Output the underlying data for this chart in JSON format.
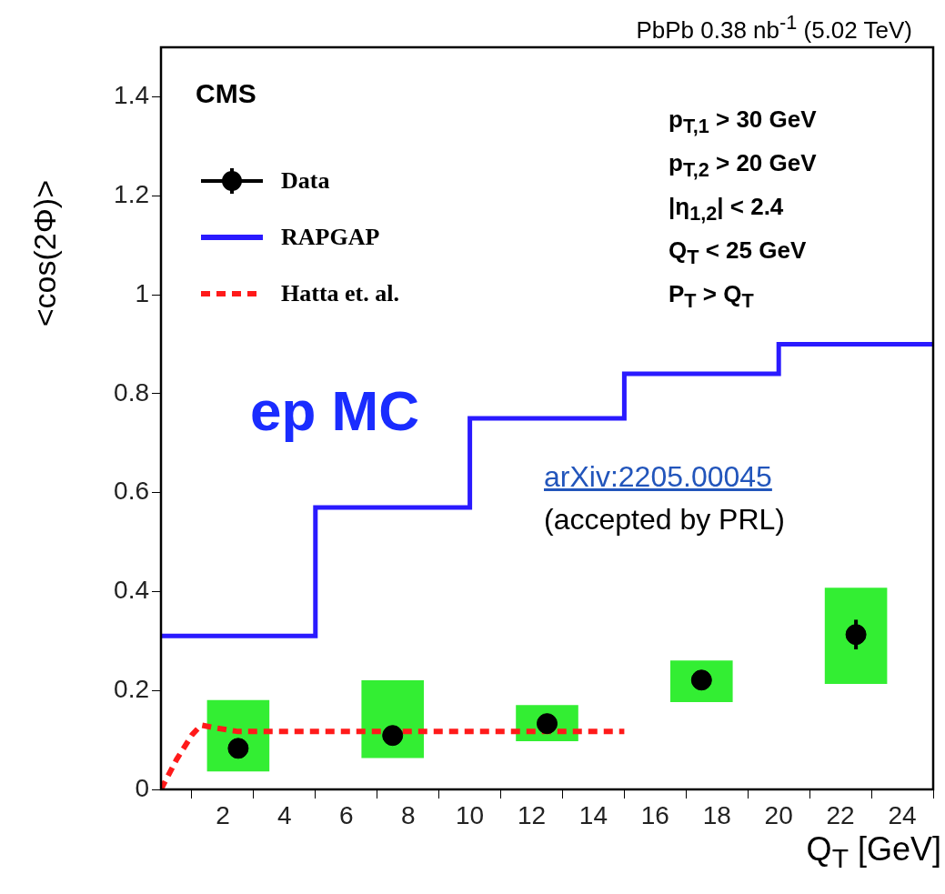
{
  "chart_data": {
    "type": "scatter",
    "title": "PbPb 0.38 nb$^{-1}$ (5.02 TeV)",
    "xlabel": "Q$_{T}$ [GeV]",
    "ylabel": "<cos(2Φ)>",
    "xlim": [
      0,
      25
    ],
    "xticks": [
      2,
      4,
      6,
      8,
      10,
      12,
      14,
      16,
      18,
      20,
      22,
      24
    ],
    "ylim": [
      0,
      1.5
    ],
    "yticks": [
      0,
      0.2,
      0.4,
      0.6,
      0.8,
      1,
      1.2,
      1.4
    ],
    "grid": false,
    "legend": "top left",
    "annotations": [
      "CMS",
      "p$_{T,1}$ > 30 GeV",
      "p$_{T,2}$ > 20 GeV",
      "|η$_{1,2}$| < 2.4",
      "Q$_{T}$ < 25 GeV",
      "P$_{T}$ > Q$_{T}$",
      "ep MC",
      "arXiv:2205.00045",
      "(accepted by PRL)"
    ],
    "series": [
      {
        "type": "bar",
        "color": "#33ee33",
        "x": [
          2.5,
          7.5,
          12.5,
          17.5,
          22.5
        ],
        "base": [
          0.037,
          0.064,
          0.098,
          0.177,
          0.214
        ],
        "values": [
          0.143,
          0.156,
          0.072,
          0.083,
          0.193
        ]
      },
      {
        "name": "Data",
        "color": "#000000",
        "marker": "circle",
        "x": [
          2.5,
          7.5,
          12.5,
          17.5,
          22.5
        ],
        "values": [
          0.083,
          0.109,
          0.133,
          0.221,
          0.313
        ],
        "errors": [
          0.01,
          0.01,
          0.01,
          0.01,
          0.03
        ]
      },
      {
        "type": "step",
        "name": "RAPGAP",
        "color": "#2a1aff",
        "line_style": "solid",
        "x": [
          0,
          5,
          10,
          15,
          20,
          25
        ],
        "values": [
          0.31,
          0.57,
          0.75,
          0.84,
          0.9,
          0.9
        ]
      },
      {
        "type": "line",
        "name": "Hatta et. al.",
        "color": "#ff1a1a",
        "line_style": "dashed",
        "x": [
          0,
          0.5,
          1,
          1.3,
          1.7,
          2.5,
          5,
          10,
          15
        ],
        "values": [
          0,
          0.06,
          0.11,
          0.13,
          0.125,
          0.117,
          0.117,
          0.117,
          0.117
        ]
      }
    ]
  }
}
